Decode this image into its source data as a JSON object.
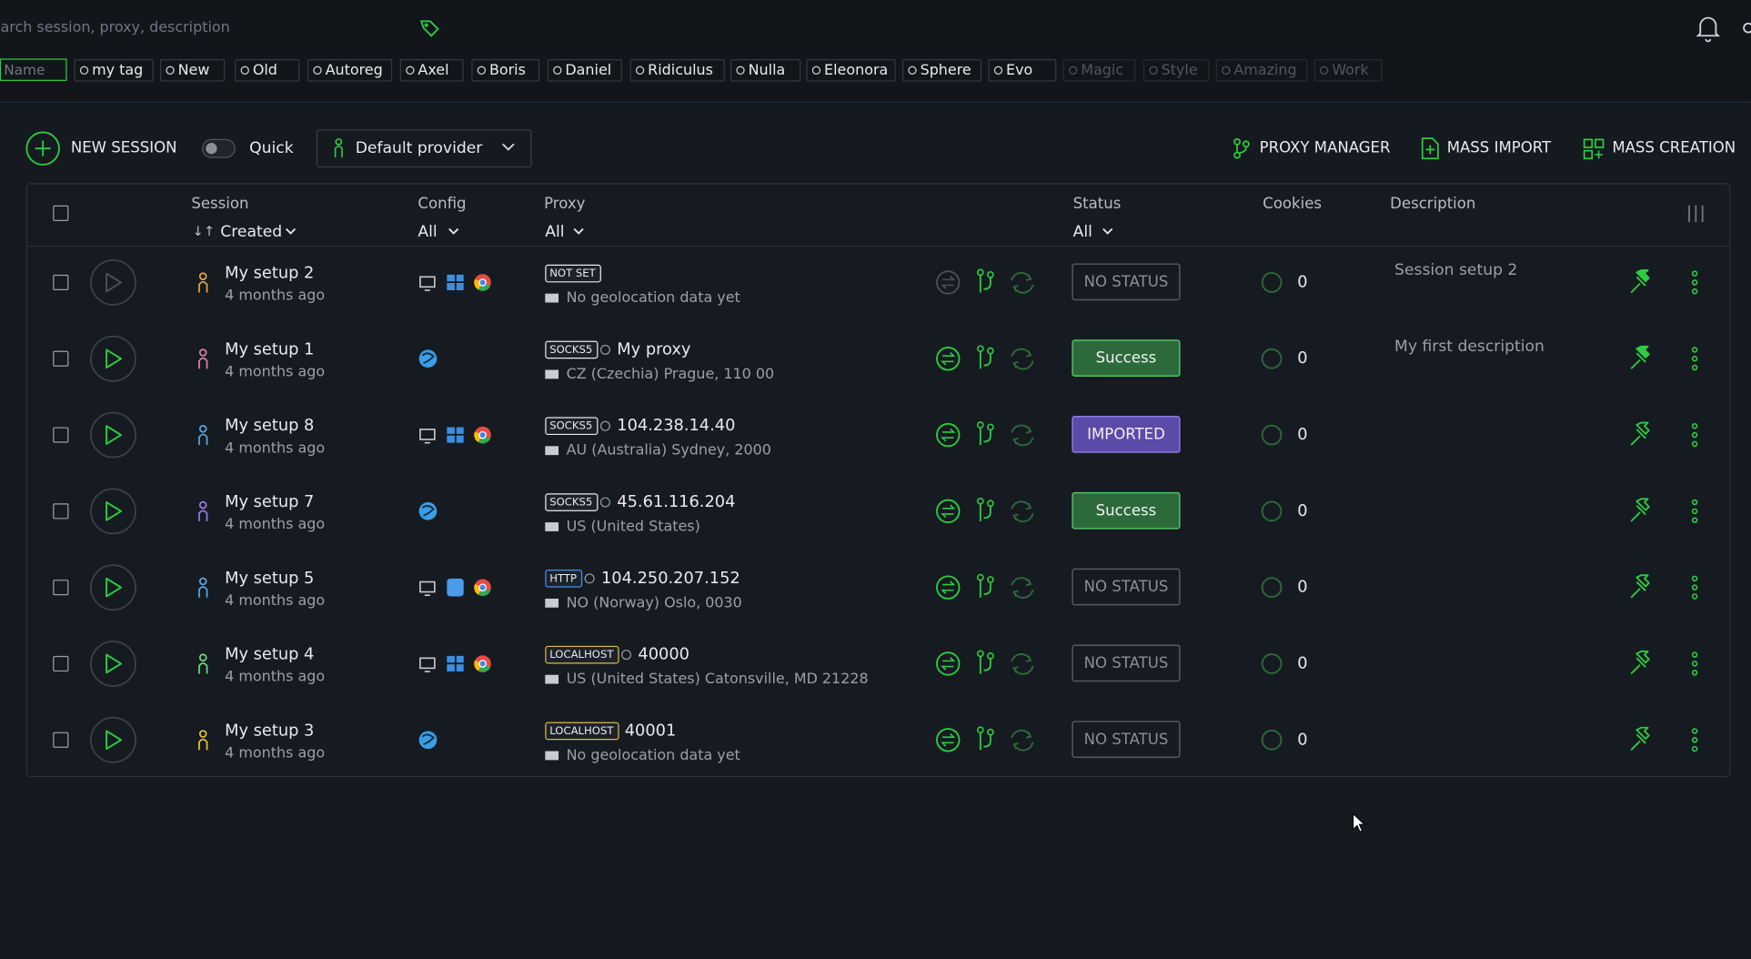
{
  "search": {
    "placeholder": "arch session, proxy, description"
  },
  "tag_filter": {
    "placeholder": "Name"
  },
  "tags": [
    "my tag",
    "New",
    "Old",
    "Autoreg",
    "Axel",
    "Boris",
    "Daniel",
    "Ridiculus",
    "Nulla",
    "Eleonora",
    "Sphere",
    "Evo",
    "Magic",
    "Style",
    "Amazing",
    "Work"
  ],
  "toolbar": {
    "new_session": "NEW SESSION",
    "quick": "Quick",
    "provider": "Default provider",
    "proxy_manager": "PROXY MANAGER",
    "mass_import": "MASS IMPORT",
    "mass_creation": "MASS CREATION"
  },
  "table": {
    "headers": {
      "session": "Session",
      "sort": "Created",
      "config": "Config",
      "config_filter": "All",
      "proxy": "Proxy",
      "proxy_filter": "All",
      "status": "Status",
      "status_filter": "All",
      "cookies": "Cookies",
      "description": "Description"
    },
    "rows": [
      {
        "name": "My setup 2",
        "created": "4 months ago",
        "proxy": {
          "type": "NOT SET",
          "location": "No geolocation data yet"
        },
        "status": "NO STATUS",
        "cookies": 0,
        "description": "Session setup 2"
      },
      {
        "name": "My setup 1",
        "created": "4 months ago",
        "proxy": {
          "type": "SOCKS5",
          "name": "My proxy",
          "location": "CZ (Czechia) Prague, 110 00"
        },
        "status": "Success",
        "cookies": 0,
        "description": "My first description"
      },
      {
        "name": "My setup 8",
        "created": "4 months ago",
        "proxy": {
          "type": "SOCKS5",
          "name": "104.238.14.40",
          "location": "AU (Australia) Sydney, 2000"
        },
        "status": "IMPORTED",
        "cookies": 0
      },
      {
        "name": "My setup 7",
        "created": "4 months ago",
        "proxy": {
          "type": "SOCKS5",
          "name": "45.61.116.204",
          "location": "US (United States)"
        },
        "status": "Success",
        "cookies": 0
      },
      {
        "name": "My setup 5",
        "created": "4 months ago",
        "proxy": {
          "type": "HTTP",
          "name": "104.250.207.152",
          "location": "NO (Norway) Oslo, 0030"
        },
        "status": "NO STATUS",
        "cookies": 0
      },
      {
        "name": "My setup 4",
        "created": "4 months ago",
        "proxy": {
          "type": "LOCALHOST",
          "name": "40000",
          "location": "US (United States) Catonsville, MD 21228"
        },
        "status": "NO STATUS",
        "cookies": 0
      },
      {
        "name": "My setup 3",
        "created": "4 months ago",
        "proxy": {
          "type": "LOCALHOST",
          "name": "40001",
          "location": "No geolocation data yet"
        },
        "status": "NO STATUS",
        "cookies": 0
      }
    ]
  }
}
